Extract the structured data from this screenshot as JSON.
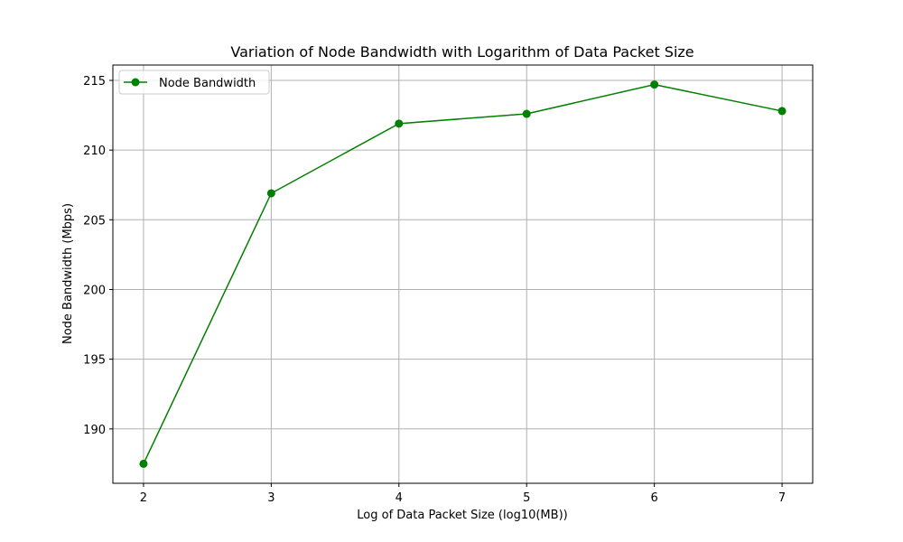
{
  "chart_data": {
    "type": "line",
    "title": "Variation of Node Bandwidth with Logarithm of Data Packet Size",
    "xlabel": "Log of Data Packet Size (log10(MB))",
    "ylabel": "Node Bandwidth (Mbps)",
    "x": [
      2,
      3,
      4,
      5,
      6,
      7
    ],
    "series": [
      {
        "name": "Node Bandwidth",
        "color": "#008000",
        "marker": "circle",
        "values": [
          187.5,
          206.9,
          211.9,
          212.6,
          214.7,
          212.8
        ]
      }
    ],
    "xlim": [
      1.76,
      7.24
    ],
    "ylim": [
      186.1,
      216.1
    ],
    "xticks": [
      2,
      3,
      4,
      5,
      6,
      7
    ],
    "yticks": [
      190,
      195,
      200,
      205,
      210,
      215
    ],
    "grid": true,
    "legend_position": "top-left"
  }
}
